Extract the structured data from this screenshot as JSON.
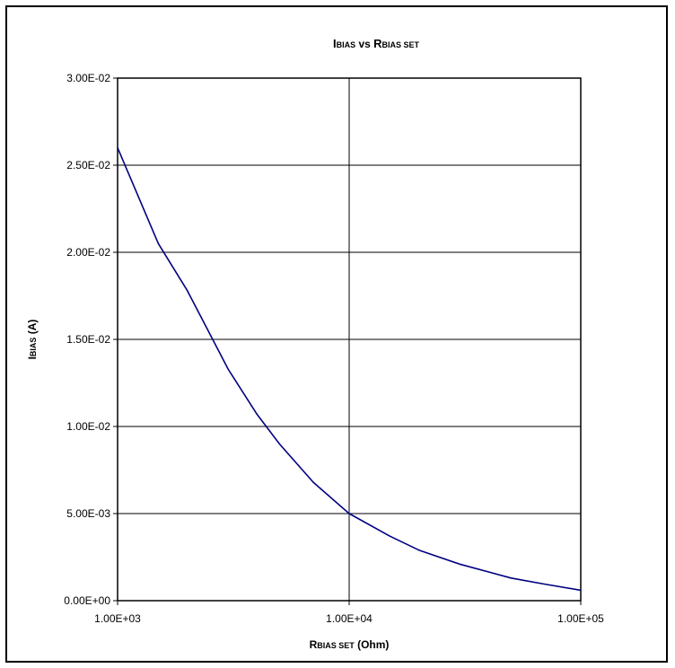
{
  "chart_data": {
    "type": "line",
    "title": {
      "main": "I",
      "sub": "BIAS",
      "mid": " vs ",
      "main2": "R",
      "sub2": "BIAS SET"
    },
    "xlabel": {
      "main": "R",
      "sub": "BIAS SET",
      "rest": " (Ohm)"
    },
    "ylabel": {
      "main": "I",
      "sub": "BIAS",
      "rest": " (A)"
    },
    "x_scale": "log",
    "xlim": [
      1000,
      100000
    ],
    "ylim": [
      0,
      0.03
    ],
    "x_ticks": [
      {
        "value": 1000,
        "label": "1.00E+03"
      },
      {
        "value": 10000,
        "label": "1.00E+04"
      },
      {
        "value": 100000,
        "label": "1.00E+05"
      }
    ],
    "y_ticks": [
      {
        "value": 0,
        "label": "0.00E+00"
      },
      {
        "value": 0.005,
        "label": "5.00E-03"
      },
      {
        "value": 0.01,
        "label": "1.00E-02"
      },
      {
        "value": 0.015,
        "label": "1.50E-02"
      },
      {
        "value": 0.02,
        "label": "2.00E-02"
      },
      {
        "value": 0.025,
        "label": "2.50E-02"
      },
      {
        "value": 0.03,
        "label": "3.00E-02"
      }
    ],
    "grid": true,
    "series": [
      {
        "color": "#000080",
        "x": [
          1000,
          1500,
          2000,
          3000,
          4000,
          5000,
          7000,
          10000,
          15000,
          20000,
          30000,
          40000,
          50000,
          70000,
          100000
        ],
        "y": [
          0.026,
          0.0205,
          0.0178,
          0.0133,
          0.0107,
          0.009,
          0.0068,
          0.005,
          0.0037,
          0.0029,
          0.0021,
          0.00165,
          0.0013,
          0.00095,
          0.0006
        ]
      }
    ]
  }
}
